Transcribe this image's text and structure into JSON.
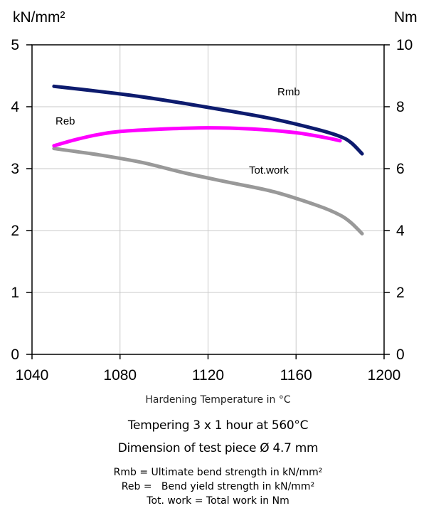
{
  "chart_data": {
    "type": "line",
    "left_unit": "kN/mm²",
    "right_unit": "Nm",
    "xlabel": "Hardening Temperature in °C",
    "subtitles": [
      "Tempering 3 x 1 hour at 560°C",
      "Dimension of test piece Ø 4.7 mm"
    ],
    "xlim": [
      1040,
      1200
    ],
    "ylim_left": [
      0,
      5
    ],
    "ylim_right": [
      0,
      10
    ],
    "x_ticks": [
      1040,
      1080,
      1120,
      1160,
      1200
    ],
    "y_ticks_left": [
      0,
      1,
      2,
      3,
      4,
      5
    ],
    "y_ticks_right": [
      0,
      2,
      4,
      6,
      8,
      10
    ],
    "grid": true,
    "series": [
      {
        "name": "Rmb",
        "axis": "left",
        "color": "#0d1b6e",
        "points": [
          [
            1050,
            4.33
          ],
          [
            1070,
            4.25
          ],
          [
            1090,
            4.16
          ],
          [
            1110,
            4.05
          ],
          [
            1130,
            3.93
          ],
          [
            1150,
            3.8
          ],
          [
            1170,
            3.63
          ],
          [
            1180,
            3.52
          ],
          [
            1185,
            3.42
          ],
          [
            1190,
            3.24
          ]
        ]
      },
      {
        "name": "Reb",
        "axis": "left",
        "color": "#ff00ff",
        "points": [
          [
            1050,
            3.37
          ],
          [
            1060,
            3.47
          ],
          [
            1070,
            3.55
          ],
          [
            1080,
            3.6
          ],
          [
            1100,
            3.64
          ],
          [
            1120,
            3.66
          ],
          [
            1140,
            3.64
          ],
          [
            1160,
            3.58
          ],
          [
            1175,
            3.49
          ],
          [
            1180,
            3.45
          ]
        ]
      },
      {
        "name": "Tot.work",
        "axis": "right",
        "color": "#999999",
        "points": [
          [
            1050,
            6.65
          ],
          [
            1070,
            6.45
          ],
          [
            1090,
            6.2
          ],
          [
            1110,
            5.85
          ],
          [
            1130,
            5.55
          ],
          [
            1150,
            5.25
          ],
          [
            1170,
            4.8
          ],
          [
            1180,
            4.5
          ],
          [
            1185,
            4.25
          ],
          [
            1190,
            3.9
          ]
        ]
      }
    ],
    "legend_lines": [
      "Rmb = Ultimate bend strength in kN/mm²",
      "Reb =   Bend yield strength in kN/mm²",
      "Tot. work = Total work in Nm"
    ]
  }
}
